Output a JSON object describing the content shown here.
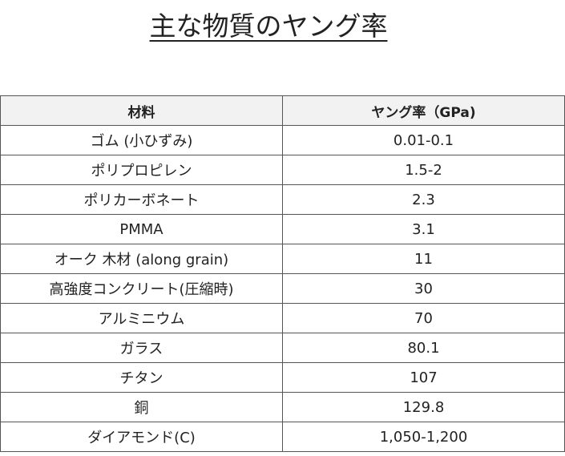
{
  "header": {
    "title": "主な物質のヤング率"
  },
  "table": {
    "columns": [
      "材料",
      "ヤング率（GPa)"
    ],
    "rows": [
      [
        "ゴム (小ひずみ)",
        "0.01-0.1"
      ],
      [
        "ポリプロピレン",
        "1.5-2"
      ],
      [
        "ポリカーボネート",
        "2.3"
      ],
      [
        "PMMA",
        "3.1"
      ],
      [
        "オーク 木材 (along grain)",
        "11"
      ],
      [
        "高強度コンクリート(圧縮時)",
        "30"
      ],
      [
        "アルミニウム",
        "70"
      ],
      [
        "ガラス",
        "80.1"
      ],
      [
        "チタン",
        "107"
      ],
      [
        "銅",
        "129.8"
      ],
      [
        "ダイアモンド(C)",
        "1,050-1,200"
      ]
    ]
  }
}
